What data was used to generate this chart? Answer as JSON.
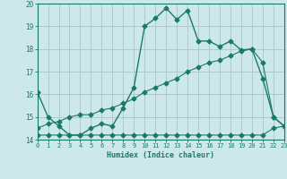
{
  "bg_color": "#cce8e8",
  "grid_color": "#aacccc",
  "line_color": "#1a7a6a",
  "x_min": 0,
  "x_max": 23,
  "y_min": 14,
  "y_max": 20,
  "xlabel": "Humidex (Indice chaleur)",
  "x_ticks": [
    0,
    1,
    2,
    3,
    4,
    5,
    6,
    7,
    8,
    9,
    10,
    11,
    12,
    13,
    14,
    15,
    16,
    17,
    18,
    19,
    20,
    21,
    22,
    23
  ],
  "y_ticks": [
    14,
    15,
    16,
    17,
    18,
    19,
    20
  ],
  "line1_x": [
    0,
    1,
    2,
    3,
    4,
    5,
    6,
    7,
    8,
    9,
    10,
    11,
    12,
    13,
    14,
    15,
    16,
    17,
    18,
    19,
    20,
    21,
    22,
    23
  ],
  "line1_y": [
    16.1,
    15.0,
    14.6,
    14.2,
    14.2,
    14.5,
    14.7,
    14.6,
    15.4,
    16.3,
    19.0,
    19.35,
    19.8,
    19.3,
    19.7,
    18.35,
    18.35,
    18.1,
    18.35,
    17.95,
    18.0,
    16.7,
    15.0,
    14.6
  ],
  "line2_x": [
    0,
    1,
    2,
    3,
    4,
    5,
    6,
    7,
    8,
    9,
    10,
    11,
    12,
    13,
    14,
    15,
    16,
    17,
    18,
    19,
    20,
    21,
    22,
    23
  ],
  "line2_y": [
    14.2,
    14.2,
    14.2,
    14.2,
    14.2,
    14.2,
    14.2,
    14.2,
    14.2,
    14.2,
    14.2,
    14.2,
    14.2,
    14.2,
    14.2,
    14.2,
    14.2,
    14.2,
    14.2,
    14.2,
    14.2,
    14.2,
    14.5,
    14.6
  ],
  "line3_x": [
    0,
    1,
    2,
    3,
    4,
    5,
    6,
    7,
    8,
    9,
    10,
    11,
    12,
    13,
    14,
    15,
    16,
    17,
    18,
    19,
    20,
    21,
    22,
    23
  ],
  "line3_y": [
    14.5,
    14.7,
    14.8,
    15.0,
    15.1,
    15.1,
    15.3,
    15.4,
    15.6,
    15.8,
    16.1,
    16.3,
    16.5,
    16.7,
    17.0,
    17.2,
    17.4,
    17.5,
    17.7,
    17.9,
    18.0,
    17.4,
    15.0,
    14.6
  ]
}
